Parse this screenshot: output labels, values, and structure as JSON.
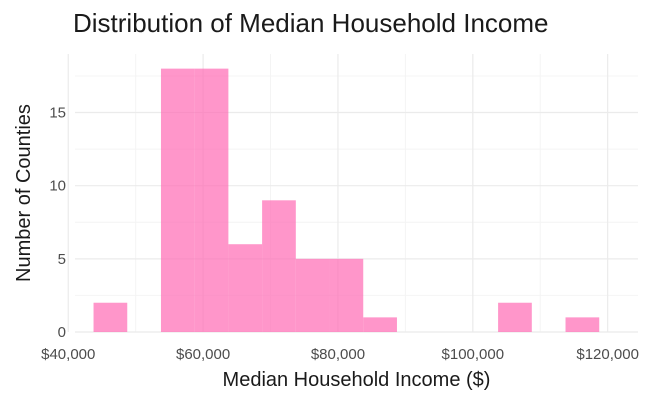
{
  "chart_data": {
    "type": "bar",
    "title": "Distribution of Median Household Income",
    "xlabel": "Median Household Income ($)",
    "ylabel": "Number of Counties",
    "xlim": [
      41000,
      124500
    ],
    "ylim": [
      0,
      19
    ],
    "x_ticks": [
      40000,
      60000,
      80000,
      100000,
      120000
    ],
    "x_tick_labels": [
      "$40,000",
      "$60,000",
      "$80,000",
      "$100,000",
      "$120,000"
    ],
    "y_ticks": [
      0,
      5,
      10,
      15
    ],
    "y_tick_labels": [
      "0",
      "5",
      "10",
      "15"
    ],
    "grid": true,
    "bin_width": 5000,
    "bins": [
      {
        "start": 43750,
        "end": 48750,
        "count": 2
      },
      {
        "start": 53750,
        "end": 58750,
        "count": 18
      },
      {
        "start": 58750,
        "end": 63750,
        "count": 18
      },
      {
        "start": 63750,
        "end": 68750,
        "count": 6
      },
      {
        "start": 68750,
        "end": 73750,
        "count": 9
      },
      {
        "start": 73750,
        "end": 78750,
        "count": 5
      },
      {
        "start": 78750,
        "end": 83750,
        "count": 5
      },
      {
        "start": 83750,
        "end": 88750,
        "count": 1
      },
      {
        "start": 103750,
        "end": 108750,
        "count": 2
      },
      {
        "start": 113750,
        "end": 118750,
        "count": 1
      }
    ],
    "colors": {
      "bar": "#ff69b4",
      "bar_opacity": 0.7,
      "grid_major": "#ebebeb",
      "grid_minor": "#f4f4f4"
    }
  }
}
